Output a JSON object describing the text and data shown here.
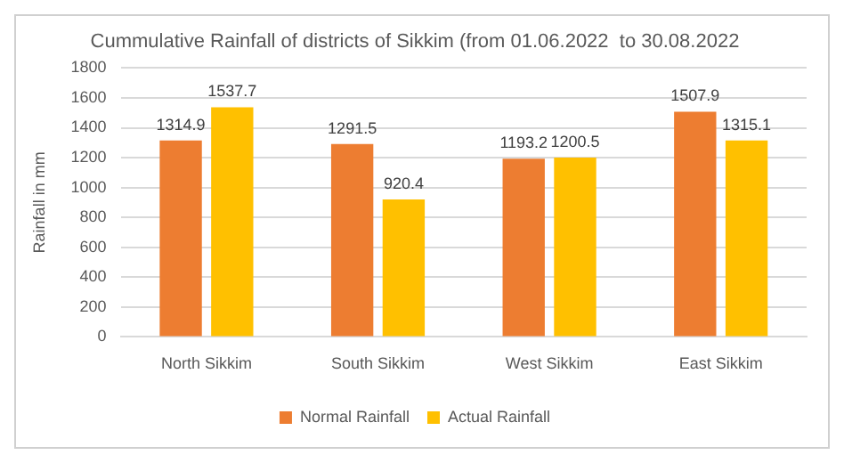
{
  "chart_data": {
    "type": "bar",
    "title": "Cummulative Rainfall of districts of Sikkim (from 01.06.2022  to 30.08.2022",
    "ylabel": "Rainfall in mm",
    "categories": [
      "North Sikkim",
      "South Sikkim",
      "West Sikkim",
      "East Sikkim"
    ],
    "series": [
      {
        "name": "Normal Rainfall",
        "color": "#ed7d31",
        "values": [
          1314.9,
          1291.5,
          1193.2,
          1507.9
        ]
      },
      {
        "name": "Actual Rainfall",
        "color": "#ffc000",
        "values": [
          1537.7,
          920.4,
          1200.5,
          1315.1
        ]
      }
    ],
    "ylim": [
      0,
      1800
    ],
    "yticks": [
      0,
      200,
      400,
      600,
      800,
      1000,
      1200,
      1400,
      1600,
      1800
    ],
    "grid": "y",
    "legend": "bottom",
    "data_labels": true
  }
}
